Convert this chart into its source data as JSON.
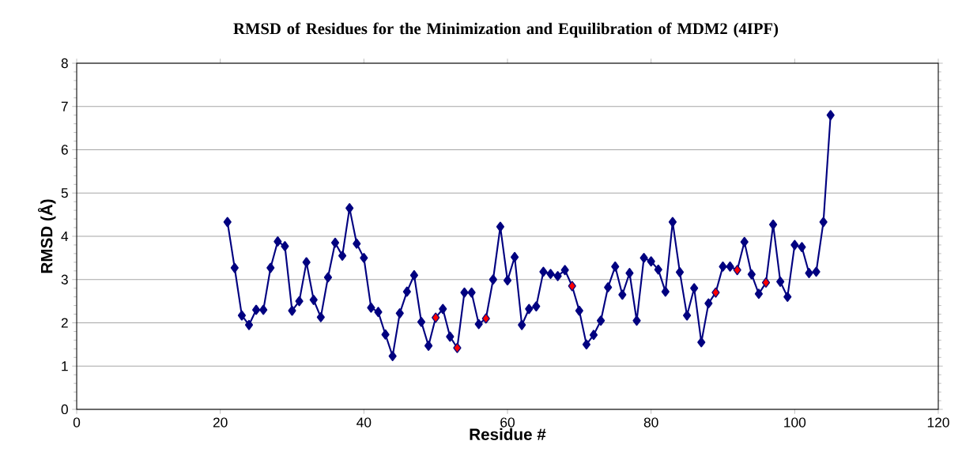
{
  "chart_data": {
    "type": "line",
    "title": "RMSD of Residues for the Minimization and Equilibration of MDM2 (4IPF)",
    "xlabel": "Residue #",
    "ylabel": "RMSD (Å)",
    "xlim": [
      0,
      120
    ],
    "xticks": [
      0,
      20,
      40,
      60,
      80,
      100,
      120
    ],
    "ylim": [
      0,
      8
    ],
    "yticks": [
      0,
      1,
      2,
      3,
      4,
      5,
      6,
      7,
      8
    ],
    "grid": "y",
    "marker": "diamond",
    "line_style": "solid",
    "series": [
      {
        "type": "line",
        "color": "#000080",
        "x": [
          21,
          22,
          23,
          24,
          25,
          26,
          27,
          28,
          29,
          30,
          31,
          32,
          33,
          34,
          35,
          36,
          37,
          38,
          39,
          40,
          41,
          42,
          43,
          44,
          45,
          46,
          47,
          48,
          49,
          50,
          51,
          52,
          53,
          54,
          55,
          56,
          57,
          58,
          59,
          60,
          61,
          62,
          63,
          64,
          65,
          66,
          67,
          68,
          69,
          70,
          71,
          72,
          73,
          74,
          75,
          76,
          77,
          78,
          79,
          80,
          81,
          82,
          83,
          84,
          85,
          86,
          87,
          88,
          89,
          90,
          91,
          92,
          93,
          94,
          95,
          96,
          97,
          98,
          99,
          100,
          101,
          102,
          103,
          104,
          105
        ],
        "values": [
          4.33,
          3.27,
          2.17,
          1.95,
          2.3,
          2.3,
          3.27,
          3.88,
          3.77,
          2.28,
          2.5,
          3.4,
          2.53,
          2.13,
          3.05,
          3.85,
          3.55,
          4.65,
          3.83,
          3.5,
          2.35,
          2.25,
          1.73,
          1.23,
          2.22,
          2.72,
          3.1,
          2.02,
          1.47,
          2.12,
          2.32,
          1.68,
          1.42,
          2.7,
          2.7,
          1.97,
          2.1,
          3.0,
          4.22,
          2.98,
          3.52,
          1.95,
          2.32,
          2.38,
          3.18,
          3.13,
          3.08,
          3.22,
          2.85,
          2.28,
          1.5,
          1.72,
          2.05,
          2.82,
          3.3,
          2.65,
          3.15,
          2.05,
          3.5,
          3.42,
          3.23,
          2.72,
          4.33,
          3.17,
          2.17,
          2.8,
          1.55,
          2.45,
          2.7,
          3.3,
          3.3,
          3.22,
          3.87,
          3.12,
          2.67,
          2.93,
          4.27,
          2.95,
          2.6,
          3.8,
          3.75,
          3.15,
          3.18,
          4.33,
          6.8
        ]
      },
      {
        "type": "scatter",
        "color": "#ff0000",
        "x": [
          50,
          53,
          57,
          69,
          89,
          92,
          96
        ],
        "values": [
          2.12,
          1.42,
          2.1,
          2.85,
          2.7,
          3.22,
          2.93
        ]
      }
    ]
  }
}
